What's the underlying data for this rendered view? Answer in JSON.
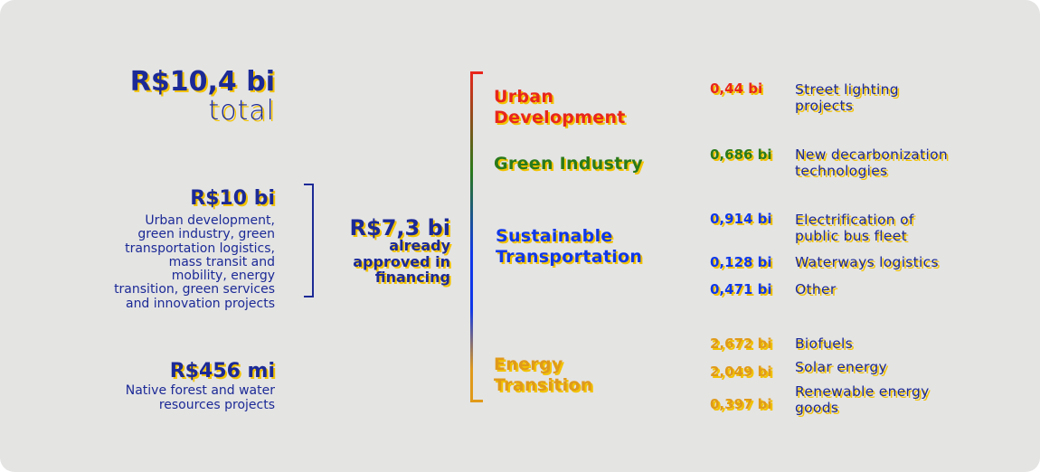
{
  "colors": {
    "navy": "#1c2a96",
    "shadow": "#f2c200",
    "urban": "#e8261c",
    "green": "#2a7a1a",
    "transport": "#1038e8",
    "energy": "#e09a1a"
  },
  "total": {
    "amount": "R$10,4 bi",
    "label": "total"
  },
  "groups": [
    {
      "amount": "R$10 bi",
      "description": [
        "Urban development,",
        "green industry, green",
        "transportation logistics,",
        "mass transit and",
        "mobility, energy",
        "transition, green services",
        "and innovation projects"
      ]
    },
    {
      "amount": "R$456 mi",
      "description": [
        "Native forest and water",
        "resources projects"
      ]
    }
  ],
  "approved": {
    "amount": "R$7,3 bi",
    "label": [
      "already",
      "approved in",
      "financing"
    ]
  },
  "categories": [
    {
      "name": [
        "Urban",
        "Development"
      ],
      "items": [
        {
          "value": "0,44 bi",
          "label": [
            "Street lighting",
            "projects"
          ]
        }
      ]
    },
    {
      "name": [
        "Green Industry"
      ],
      "items": [
        {
          "value": "0,686 bi",
          "label": [
            "New decarbonization",
            "technologies"
          ]
        }
      ]
    },
    {
      "name": [
        "Sustainable",
        "Transportation"
      ],
      "items": [
        {
          "value": "0,914 bi",
          "label": [
            "Electrification of",
            "public bus fleet"
          ]
        },
        {
          "value": "0,128 bi",
          "label": [
            "Waterways logistics"
          ]
        },
        {
          "value": "0,471 bi",
          "label": [
            "Other"
          ]
        }
      ]
    },
    {
      "name": [
        "Energy",
        "Transition"
      ],
      "items": [
        {
          "value": "2,672 bi",
          "label": [
            "Biofuels"
          ]
        },
        {
          "value": "2,049 bi",
          "label": [
            "Solar energy"
          ]
        },
        {
          "value": "0,397 bi",
          "label": [
            "Renewable energy",
            "goods"
          ]
        }
      ]
    }
  ]
}
